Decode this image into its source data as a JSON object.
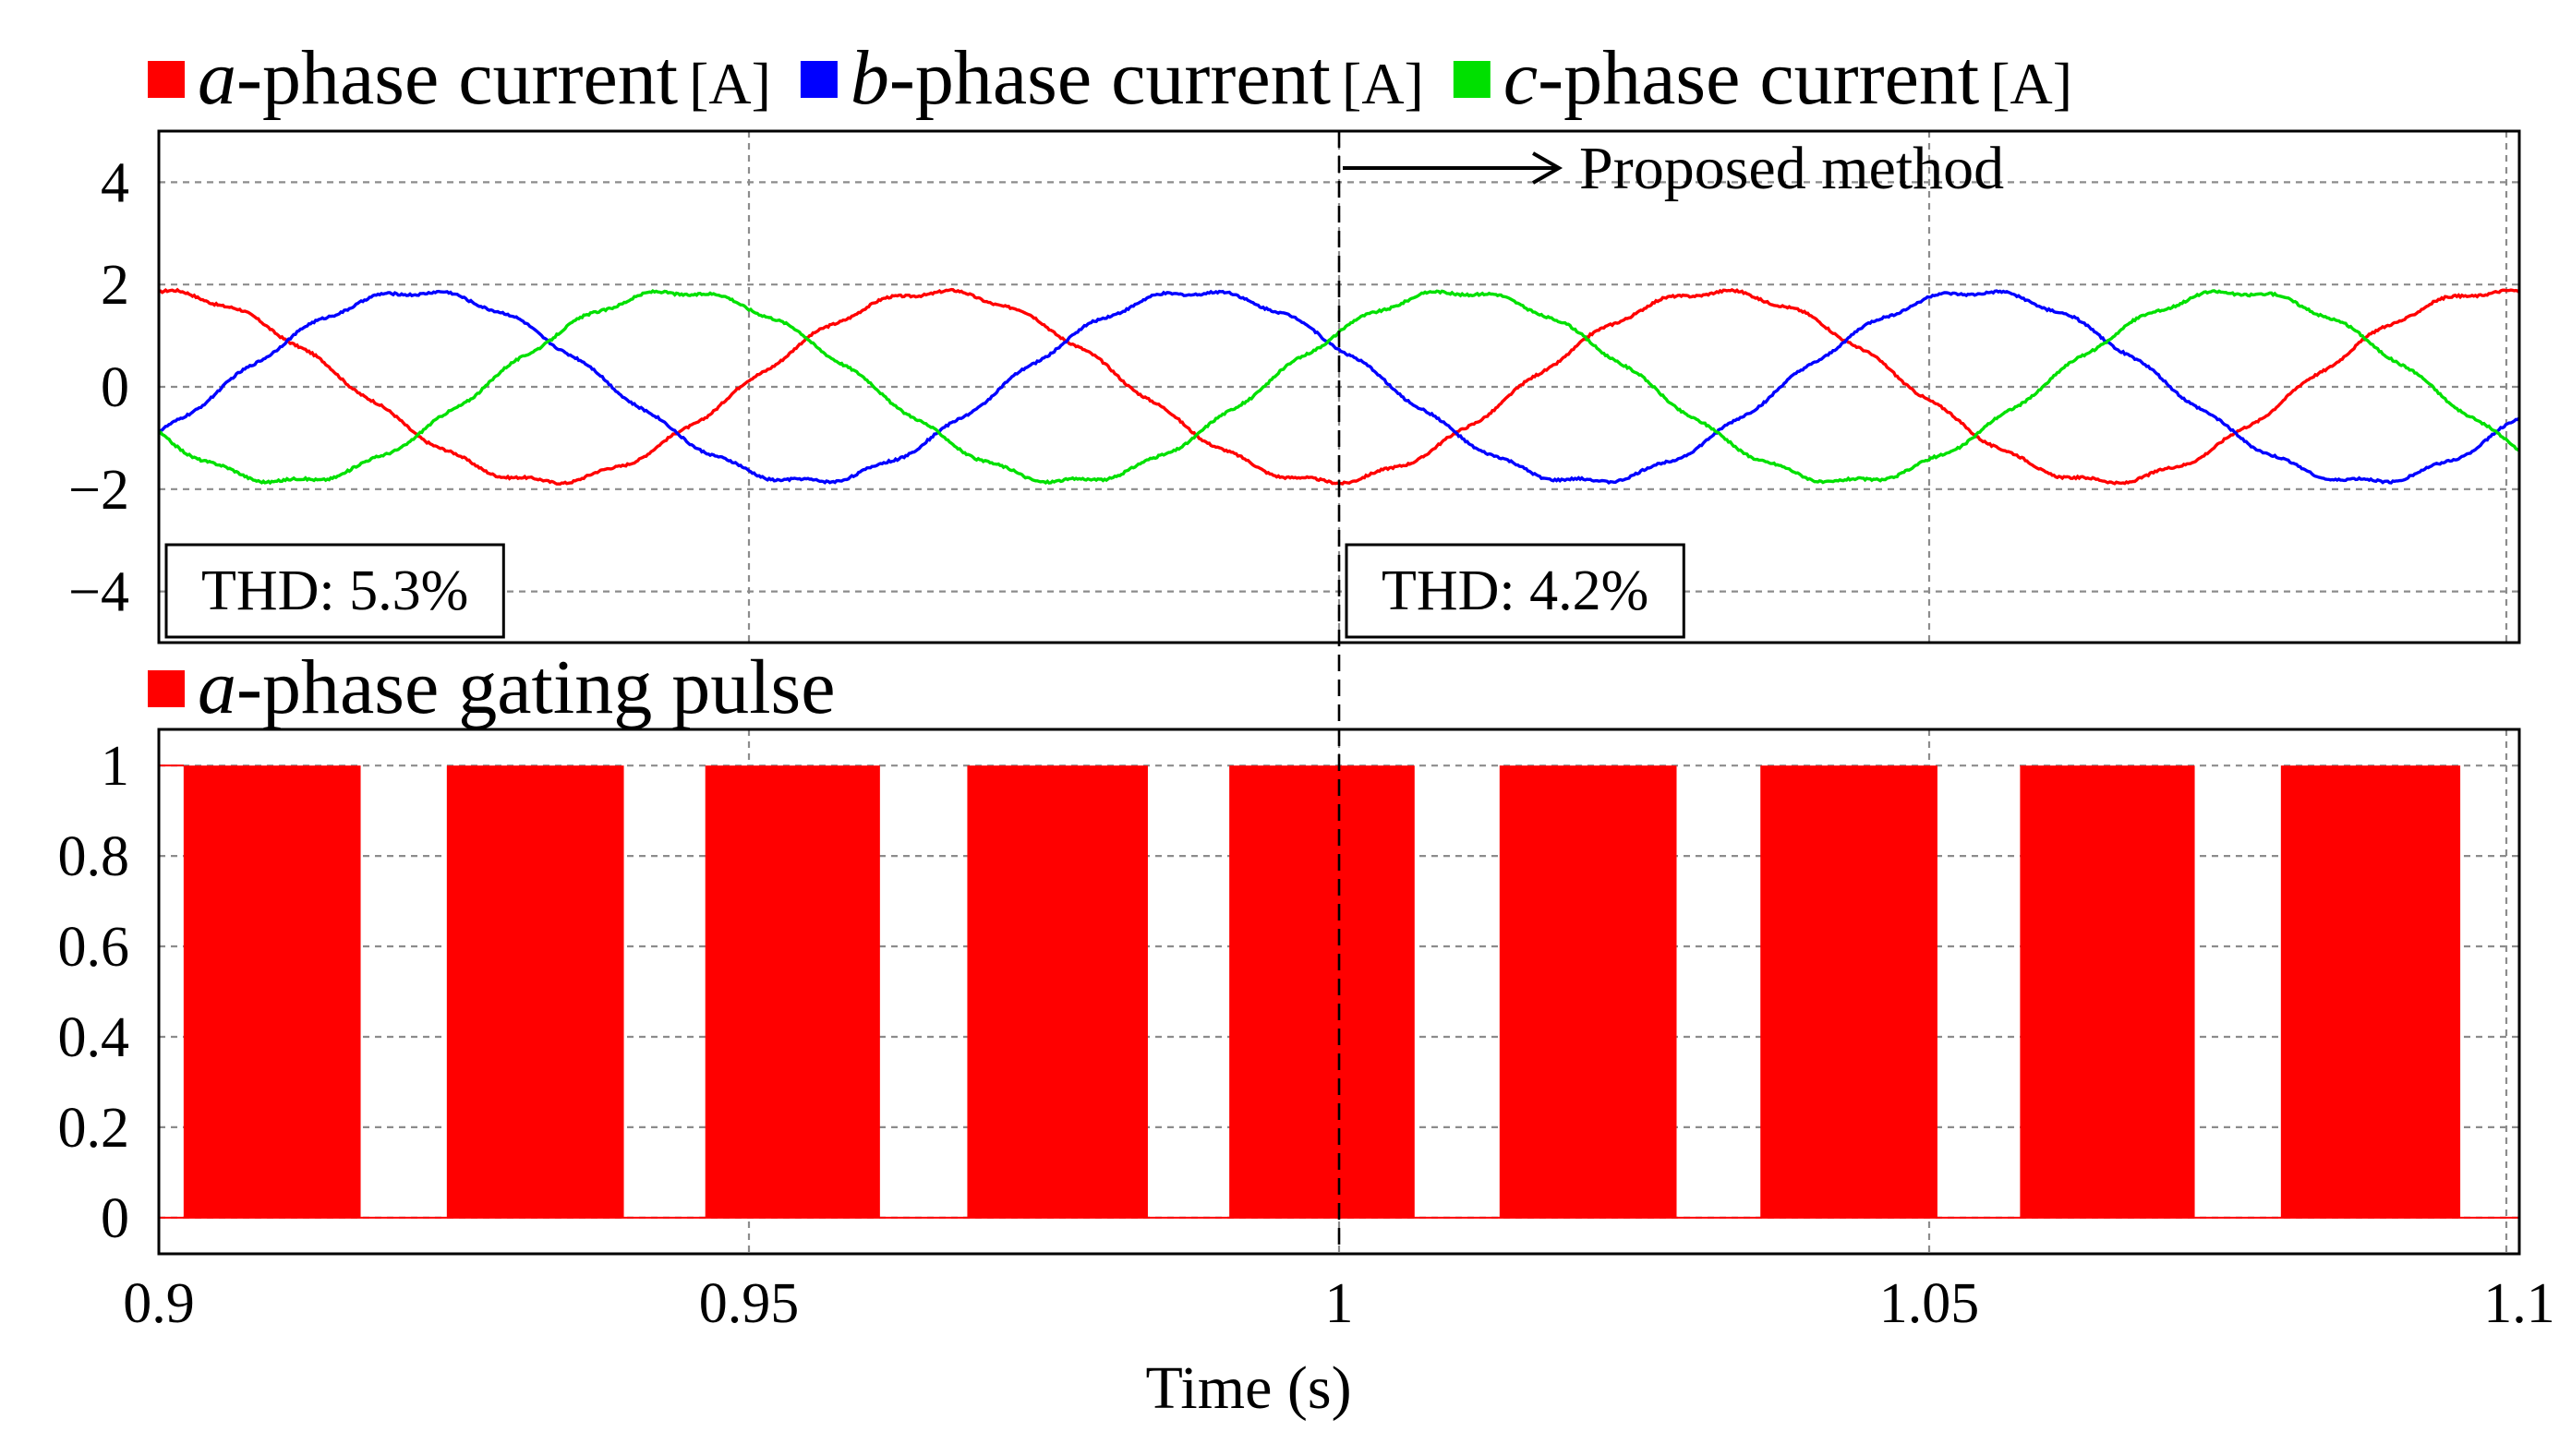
{
  "chart_data": [
    {
      "id": "currents",
      "type": "line",
      "legend": [
        {
          "var": "a",
          "text": "-phase current",
          "unit": "[A]",
          "color": "#ff0000"
        },
        {
          "var": "b",
          "text": "-phase current",
          "unit": "[A]",
          "color": "#0000ff"
        },
        {
          "var": "c",
          "text": "-phase current",
          "unit": "[A]",
          "color": "#00e000"
        }
      ],
      "legend_placement": "top",
      "xlim": [
        0.9,
        1.1
      ],
      "ylim": [
        -5,
        5
      ],
      "y_ticks": [
        4,
        2,
        0,
        -2,
        -4
      ],
      "y_tick_labels": [
        "4",
        "2",
        "0",
        "−2",
        "−4"
      ],
      "x_gridlines": [
        0.95,
        1.0,
        1.05
      ],
      "grid": true,
      "series": [
        {
          "name": "a-phase current",
          "color": "#ff0000",
          "amplitude": 1.85,
          "frequency_hz": 15.15,
          "phase_deg": 90,
          "ripple": 0.05
        },
        {
          "name": "b-phase current",
          "color": "#0000ff",
          "amplitude": 1.85,
          "frequency_hz": 15.15,
          "phase_deg": -30,
          "ripple": 0.05
        },
        {
          "name": "c-phase current",
          "color": "#00e000",
          "amplitude": 1.85,
          "frequency_hz": 15.15,
          "phase_deg": 210,
          "ripple": 0.05
        }
      ],
      "annotations": [
        {
          "label": "THD: 5.3%",
          "x": 0.9
        },
        {
          "label": "THD: 4.2%",
          "x": 1.0
        },
        {
          "label": "Proposed method",
          "arrow_from": 1.0,
          "arrow_to": 1.018
        }
      ],
      "event_line_x": 1.0
    },
    {
      "id": "gating",
      "type": "area",
      "legend": [
        {
          "var": "a",
          "text": "-phase gating pulse",
          "color": "#ff0000"
        }
      ],
      "xlim": [
        0.9,
        1.1
      ],
      "ylim": [
        -0.08,
        1.08
      ],
      "y_ticks": [
        1,
        0.8,
        0.6,
        0.4,
        0.2,
        0
      ],
      "y_tick_labels": [
        "1",
        "0.8",
        "0.6",
        "0.4",
        "0.2",
        "0"
      ],
      "x_ticks": [
        0.9,
        0.95,
        1.0,
        1.05,
        1.1
      ],
      "x_tick_labels": [
        "0.9",
        "0.95",
        "1",
        "1.05",
        "1.1"
      ],
      "xlabel": "Time (s)",
      "grid": true,
      "pulse_color": "#ff0000",
      "pulse_intervals": [
        [
          0.9021,
          0.9171
        ],
        [
          0.9244,
          0.9394
        ],
        [
          0.9463,
          0.9611
        ],
        [
          0.9685,
          0.9838
        ],
        [
          0.9907,
          1.0064
        ],
        [
          1.0136,
          1.0286
        ],
        [
          1.0357,
          1.0507
        ],
        [
          1.0577,
          1.0725
        ],
        [
          1.0798,
          1.095
        ]
      ],
      "event_line_x": 1.0
    }
  ]
}
